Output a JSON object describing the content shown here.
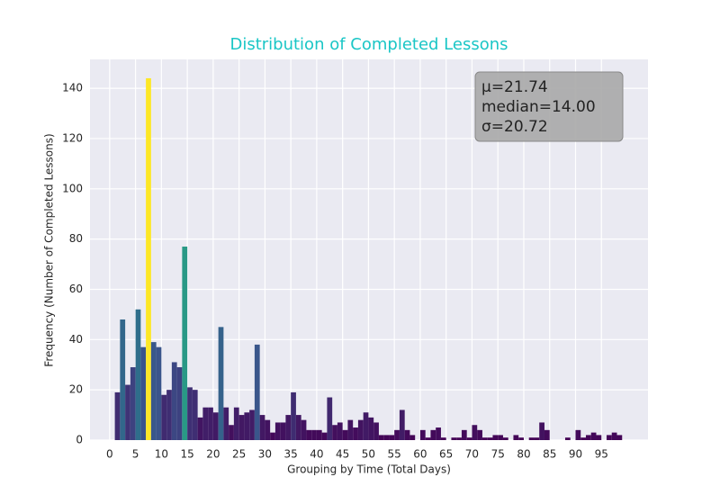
{
  "chart_data": {
    "type": "histogram",
    "title": "Distribution of Completed Lessons",
    "xlabel": "Grouping by Time (Total Days)",
    "ylabel": "Frequency (Number of Completed Lessons)",
    "annotation": [
      "μ=21.74",
      "median=14.00",
      "σ=20.72"
    ],
    "bins": [
      1,
      2,
      3,
      4,
      5,
      6,
      7,
      8,
      9,
      10,
      11,
      12,
      13,
      14,
      15,
      16,
      17,
      18,
      19,
      20,
      21,
      22,
      23,
      24,
      25,
      26,
      27,
      28,
      29,
      30,
      31,
      32,
      33,
      34,
      35,
      36,
      37,
      38,
      39,
      40,
      41,
      42,
      43,
      44,
      45,
      46,
      47,
      48,
      49,
      50,
      51,
      52,
      53,
      54,
      55,
      56,
      57,
      58,
      59,
      60,
      61,
      62,
      63,
      64,
      65,
      66,
      67,
      68,
      69,
      70,
      71,
      72,
      73,
      74,
      75,
      76,
      77,
      78,
      79,
      80,
      81,
      82,
      83,
      84,
      85,
      86,
      87,
      88,
      89,
      90,
      91,
      92,
      93,
      94,
      95,
      96,
      97,
      98,
      99
    ],
    "counts": [
      19,
      48,
      22,
      29,
      52,
      37,
      144,
      39,
      37,
      18,
      20,
      31,
      29,
      77,
      21,
      20,
      9,
      13,
      13,
      11,
      45,
      13,
      6,
      13,
      10,
      11,
      12,
      38,
      10,
      8,
      3,
      7,
      7,
      10,
      19,
      10,
      8,
      4,
      4,
      4,
      3,
      17,
      6,
      7,
      4,
      8,
      5,
      8,
      11,
      9,
      7,
      2,
      2,
      2,
      4,
      12,
      4,
      2,
      0,
      4,
      1,
      4,
      5,
      1,
      0,
      1,
      1,
      4,
      1,
      6,
      4,
      1,
      1,
      2,
      2,
      1,
      0,
      2,
      1,
      0,
      1,
      1,
      7,
      4,
      0,
      0,
      0,
      1,
      0,
      4,
      1,
      2,
      3,
      2,
      0,
      2,
      3,
      2
    ],
    "colormap": "viridis",
    "xlim": [
      -3.8,
      104
    ],
    "ylim": [
      0,
      151.5
    ],
    "xticks": [
      0,
      5,
      10,
      15,
      20,
      25,
      30,
      35,
      40,
      45,
      50,
      55,
      60,
      65,
      70,
      75,
      80,
      85,
      90,
      95
    ],
    "yticks": [
      0,
      20,
      40,
      60,
      80,
      100,
      120,
      140
    ],
    "grid": true
  }
}
